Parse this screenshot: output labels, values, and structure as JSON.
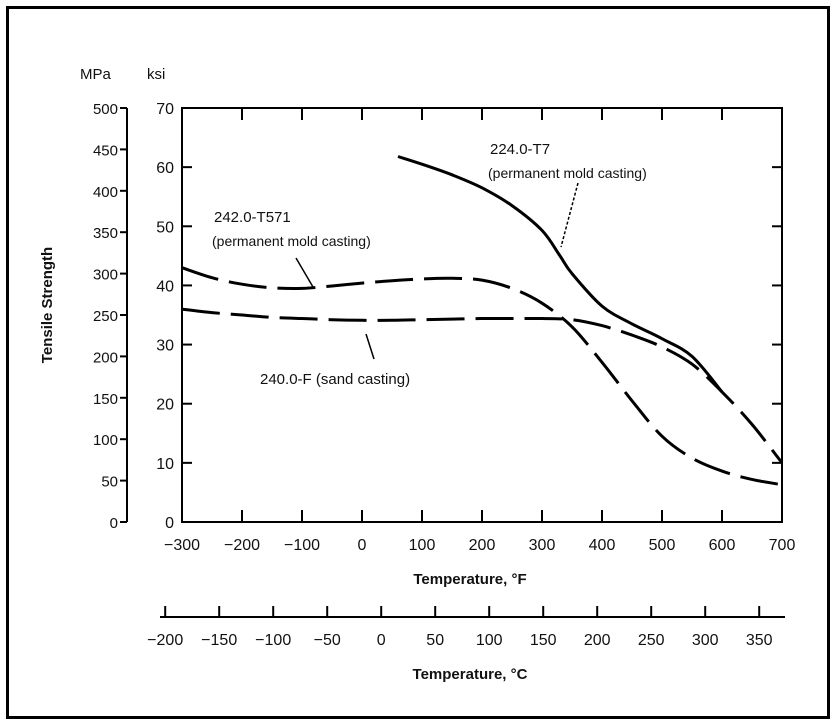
{
  "chart_data": {
    "type": "line",
    "title": "",
    "ylabel": "Tensile Strength",
    "y_units": {
      "left": "MPa",
      "right": "ksi"
    },
    "xlabel": "Temperature, °F",
    "xlabel_secondary": "Temperature, °C",
    "xlim": [
      -300,
      700
    ],
    "ylim_mpa": [
      0,
      500
    ],
    "ylim_ksi": [
      0,
      70
    ],
    "ticks_mpa": [
      "0",
      "50",
      "100",
      "150",
      "200",
      "250",
      "300",
      "350",
      "400",
      "450",
      "500"
    ],
    "ticks_ksi": [
      "0",
      "10",
      "20",
      "30",
      "40",
      "50",
      "60",
      "70"
    ],
    "ticks_f": [
      "−300",
      "−200",
      "−100",
      "0",
      "100",
      "200",
      "300",
      "400",
      "500",
      "600",
      "700"
    ],
    "ticks_c": [
      "−200",
      "−150",
      "−100",
      "−50",
      "0",
      "50",
      "100",
      "150",
      "200",
      "250",
      "300",
      "350"
    ],
    "grid": false,
    "series": [
      {
        "name": "224.0-T7",
        "sublabel": "(permanent mold casting)",
        "style": "solid",
        "x": [
          60,
          100,
          150,
          200,
          250,
          300,
          330,
          350,
          400,
          450,
          500,
          550,
          600
        ],
        "y": [
          61.8,
          60.5,
          58.7,
          56.5,
          53.5,
          49.3,
          45,
          42,
          36.5,
          33.5,
          31,
          28,
          22
        ]
      },
      {
        "name": "242.0-T571",
        "sublabel": "(permanent mold casting)",
        "style": "dashed",
        "x": [
          -300,
          -250,
          -200,
          -150,
          -100,
          -50,
          0,
          50,
          100,
          150,
          200,
          250,
          300,
          350,
          400,
          450,
          500,
          550,
          600,
          650,
          700
        ],
        "y": [
          43,
          41.3,
          40.2,
          39.6,
          39.5,
          39.9,
          40.4,
          40.8,
          41.1,
          41.2,
          40.9,
          39.5,
          37,
          33,
          27,
          20.5,
          14.5,
          10.8,
          8.6,
          7.2,
          6.3
        ]
      },
      {
        "name": "240.0-F (sand casting)",
        "style": "dashed",
        "x": [
          -300,
          -250,
          -200,
          -150,
          -100,
          -50,
          0,
          50,
          100,
          150,
          200,
          250,
          300,
          350,
          400,
          450,
          500,
          550,
          600,
          650,
          700
        ],
        "y": [
          36,
          35.4,
          35,
          34.6,
          34.4,
          34.2,
          34.1,
          34.1,
          34.2,
          34.3,
          34.4,
          34.4,
          34.4,
          34.2,
          33.2,
          31.6,
          29.6,
          26.7,
          22,
          16.5,
          10
        ]
      }
    ]
  }
}
